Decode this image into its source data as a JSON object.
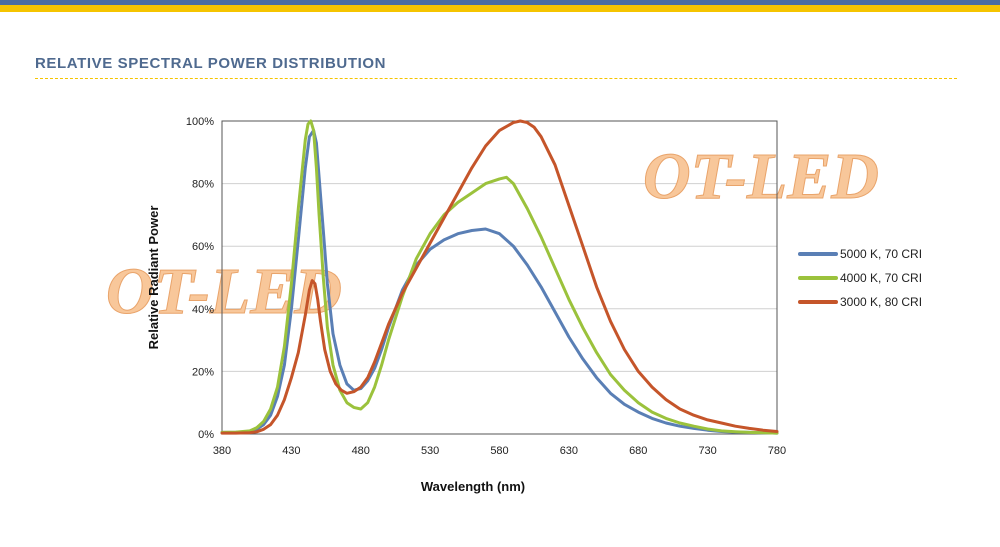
{
  "header": {
    "title": "RELATIVE SPECTRAL POWER DISTRIBUTION"
  },
  "watermark_text": "OT-LED",
  "colors": {
    "header_blue": "#4a6da0",
    "header_yellow": "#f5c400",
    "series_5000k": "#5a7fb5",
    "series_4000k": "#9bc23c",
    "series_3000k": "#c5552a"
  },
  "chart_data": {
    "type": "line",
    "xlabel": "Wavelength (nm)",
    "ylabel": "Relative Radiant Power",
    "xlim": [
      380,
      780
    ],
    "ylim": [
      0,
      100
    ],
    "x_ticks": [
      "380",
      "430",
      "480",
      "530",
      "580",
      "630",
      "680",
      "730",
      "780"
    ],
    "y_ticks": [
      "0%",
      "20%",
      "40%",
      "60%",
      "80%",
      "100%"
    ],
    "grid": "horizontal",
    "legend_position": "right",
    "series": [
      {
        "name": "5000 K, 70 CRI",
        "color": "#5a7fb5",
        "x": [
          380,
          390,
          400,
          405,
          410,
          415,
          420,
          425,
          430,
          435,
          440,
          443,
          446,
          448,
          450,
          453,
          456,
          460,
          465,
          470,
          475,
          480,
          485,
          490,
          495,
          500,
          510,
          520,
          530,
          540,
          550,
          560,
          570,
          580,
          590,
          600,
          610,
          620,
          630,
          640,
          650,
          660,
          670,
          680,
          690,
          700,
          710,
          720,
          730,
          740,
          750,
          760,
          770,
          780
        ],
        "y": [
          0.5,
          0.5,
          0.8,
          1.5,
          3,
          6,
          12,
          22,
          40,
          62,
          85,
          95,
          97,
          93,
          82,
          65,
          48,
          32,
          22,
          16,
          14,
          14.5,
          17,
          21,
          27,
          34,
          46,
          54,
          59,
          62,
          64,
          65,
          65.5,
          64,
          60,
          54,
          47,
          39,
          31,
          24,
          18,
          13,
          9.5,
          7,
          5,
          3.5,
          2.5,
          1.8,
          1.2,
          0.8,
          0.6,
          0.5,
          0.4,
          0.3
        ]
      },
      {
        "name": "4000 K, 70 CRI",
        "color": "#9bc23c",
        "x": [
          380,
          390,
          400,
          405,
          410,
          415,
          420,
          425,
          430,
          435,
          440,
          442,
          444,
          446,
          448,
          450,
          453,
          456,
          460,
          465,
          470,
          475,
          480,
          485,
          490,
          495,
          500,
          510,
          520,
          530,
          540,
          550,
          560,
          570,
          580,
          585,
          590,
          600,
          610,
          620,
          630,
          640,
          650,
          660,
          670,
          680,
          690,
          700,
          710,
          720,
          730,
          740,
          750,
          760,
          770,
          780
        ],
        "y": [
          0.5,
          0.6,
          1,
          2,
          4,
          8,
          15,
          28,
          48,
          72,
          94,
          99,
          100,
          97,
          85,
          70,
          50,
          34,
          22,
          14,
          10,
          8.5,
          8,
          10,
          15,
          22,
          30,
          44,
          56,
          64,
          70,
          74,
          77,
          80,
          81.5,
          82,
          80,
          72,
          63,
          53,
          43,
          34,
          26,
          19,
          14,
          10,
          7,
          5,
          3.5,
          2.5,
          1.6,
          1,
          0.7,
          0.5,
          0.4,
          0.3
        ]
      },
      {
        "name": "3000 K, 80 CRI",
        "color": "#c5552a",
        "x": [
          380,
          390,
          400,
          405,
          410,
          415,
          420,
          425,
          430,
          435,
          440,
          443,
          445,
          447,
          449,
          451,
          454,
          458,
          462,
          466,
          470,
          475,
          480,
          485,
          490,
          495,
          500,
          510,
          520,
          530,
          540,
          550,
          560,
          570,
          580,
          590,
          595,
          600,
          605,
          610,
          620,
          630,
          640,
          650,
          660,
          670,
          680,
          690,
          700,
          710,
          720,
          730,
          740,
          750,
          760,
          770,
          780
        ],
        "y": [
          0.3,
          0.3,
          0.4,
          0.7,
          1.5,
          3,
          6,
          11,
          18,
          26,
          38,
          46,
          49,
          48,
          43,
          36,
          27,
          20,
          16,
          14,
          13,
          13.5,
          15,
          18,
          23,
          29,
          35,
          45,
          53,
          61,
          69,
          77,
          85,
          92,
          97,
          99.5,
          100,
          99.5,
          98,
          95,
          86,
          73,
          60,
          47,
          36,
          27,
          20,
          15,
          11,
          8,
          6,
          4.5,
          3.5,
          2.5,
          1.8,
          1.2,
          0.8
        ]
      }
    ]
  }
}
